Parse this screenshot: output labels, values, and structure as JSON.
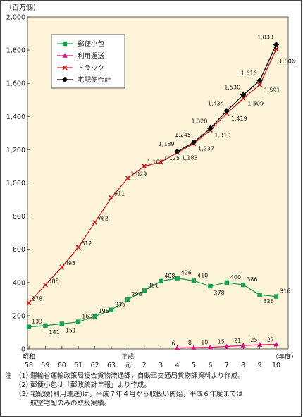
{
  "chart_data": {
    "type": "line",
    "unit_label": "（百万個）",
    "x_unit_label": "（年度）",
    "ylim": [
      0,
      2000
    ],
    "yticks": [
      "0",
      "200",
      "400",
      "600",
      "800",
      "1,000",
      "1,200",
      "1,400",
      "1,600",
      "1,800",
      "2,000"
    ],
    "era_labels": [
      {
        "text": "昭和",
        "at": 0
      },
      {
        "text": "平成",
        "at": 6
      }
    ],
    "categories": [
      "58",
      "59",
      "60",
      "61",
      "62",
      "63",
      "元",
      "2",
      "3",
      "4",
      "5",
      "6",
      "7",
      "8",
      "9",
      "10"
    ],
    "series": [
      {
        "name": "郵便小包",
        "color": "#1e9e50",
        "marker": "square",
        "values": [
          133,
          141,
          151,
          163,
          196,
          235,
          298,
          351,
          408,
          426,
          410,
          378,
          400,
          386,
          326,
          316
        ]
      },
      {
        "name": "利用運送",
        "color": "#d8137a",
        "marker": "triangle",
        "values": [
          null,
          null,
          null,
          null,
          null,
          null,
          null,
          null,
          null,
          6,
          8,
          10,
          15,
          21,
          25,
          27
        ]
      },
      {
        "name": "トラック",
        "color": "#cc1e1e",
        "marker": "x",
        "values": [
          278,
          385,
          493,
          612,
          762,
          911,
          1029,
          1101,
          1125,
          1183,
          1237,
          1318,
          1419,
          1509,
          1591,
          1806
        ]
      },
      {
        "name": "宅配便合計",
        "color": "#000000",
        "marker": "diamond",
        "values": [
          null,
          null,
          null,
          null,
          null,
          null,
          null,
          null,
          null,
          1189,
          1245,
          1328,
          1434,
          1530,
          1616,
          1833
        ]
      }
    ],
    "data_labels": {
      "郵便小包": [
        "133",
        "141",
        "151",
        "163",
        "196",
        "235",
        "298",
        "351",
        "408",
        "426",
        "410",
        "378",
        "400",
        "386",
        "326",
        "316"
      ],
      "利用運送": [
        null,
        null,
        null,
        null,
        null,
        null,
        null,
        null,
        null,
        "6",
        "8",
        "10",
        "15",
        "21",
        "25",
        "27"
      ],
      "トラック": [
        "278",
        "385",
        "493",
        "612",
        "762",
        "911",
        "1,029",
        "1,101",
        "1,125",
        "1,183",
        "1,237",
        "1,318",
        "1,419",
        "1,509",
        "1,591",
        "1,806"
      ],
      "宅配便合計": [
        null,
        null,
        null,
        null,
        null,
        null,
        null,
        null,
        null,
        "1,189",
        "1,245",
        "1,328",
        "1,434",
        "1,530",
        "1,616",
        "1,833"
      ]
    },
    "grid": false,
    "legend_position": "top-left",
    "plot_background": "#fdf3d8"
  },
  "notes": {
    "prefix": "注",
    "items": [
      {
        "num": "（1）",
        "text": "運輸省運輸政策局複合貨物流通課，自動車交通局貨物課資料より作成。"
      },
      {
        "num": "（2）",
        "text": "郵便小包は「郵政統計年報」より作成。"
      },
      {
        "num": "（3）",
        "text": "宅配便(利用運送)は，平成７年４月から取扱い開始，平成６年度までは"
      }
    ],
    "continuation": "航空宅配のみの取扱実績。"
  }
}
